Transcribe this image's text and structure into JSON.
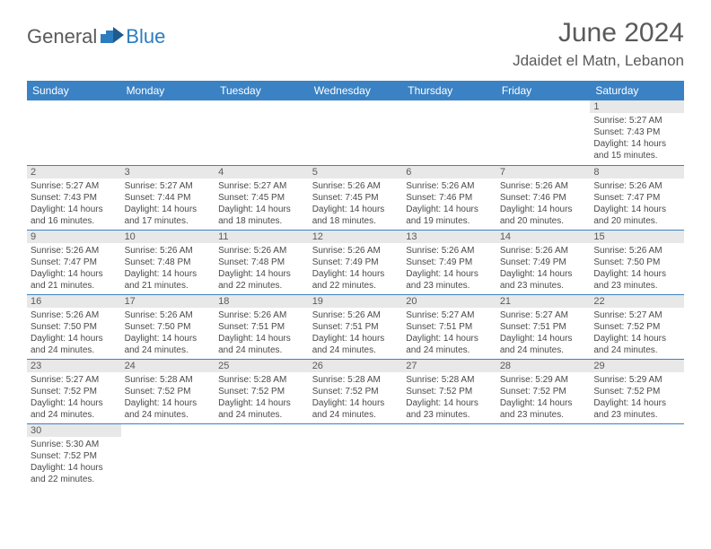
{
  "logo": {
    "part1": "General",
    "part2": "Blue"
  },
  "header": {
    "month": "June 2024",
    "location": "Jdaidet el Matn, Lebanon"
  },
  "colors": {
    "header_bg": "#3b82c4",
    "header_text": "#ffffff",
    "daynum_bg": "#e8e8e8",
    "text": "#5a5a5a",
    "row_border": "#3b82c4"
  },
  "daysOfWeek": [
    "Sunday",
    "Monday",
    "Tuesday",
    "Wednesday",
    "Thursday",
    "Friday",
    "Saturday"
  ],
  "weeks": [
    [
      null,
      null,
      null,
      null,
      null,
      null,
      {
        "n": "1",
        "sr": "Sunrise: 5:27 AM",
        "ss": "Sunset: 7:43 PM",
        "dl": "Daylight: 14 hours and 15 minutes."
      }
    ],
    [
      {
        "n": "2",
        "sr": "Sunrise: 5:27 AM",
        "ss": "Sunset: 7:43 PM",
        "dl": "Daylight: 14 hours and 16 minutes."
      },
      {
        "n": "3",
        "sr": "Sunrise: 5:27 AM",
        "ss": "Sunset: 7:44 PM",
        "dl": "Daylight: 14 hours and 17 minutes."
      },
      {
        "n": "4",
        "sr": "Sunrise: 5:27 AM",
        "ss": "Sunset: 7:45 PM",
        "dl": "Daylight: 14 hours and 18 minutes."
      },
      {
        "n": "5",
        "sr": "Sunrise: 5:26 AM",
        "ss": "Sunset: 7:45 PM",
        "dl": "Daylight: 14 hours and 18 minutes."
      },
      {
        "n": "6",
        "sr": "Sunrise: 5:26 AM",
        "ss": "Sunset: 7:46 PM",
        "dl": "Daylight: 14 hours and 19 minutes."
      },
      {
        "n": "7",
        "sr": "Sunrise: 5:26 AM",
        "ss": "Sunset: 7:46 PM",
        "dl": "Daylight: 14 hours and 20 minutes."
      },
      {
        "n": "8",
        "sr": "Sunrise: 5:26 AM",
        "ss": "Sunset: 7:47 PM",
        "dl": "Daylight: 14 hours and 20 minutes."
      }
    ],
    [
      {
        "n": "9",
        "sr": "Sunrise: 5:26 AM",
        "ss": "Sunset: 7:47 PM",
        "dl": "Daylight: 14 hours and 21 minutes."
      },
      {
        "n": "10",
        "sr": "Sunrise: 5:26 AM",
        "ss": "Sunset: 7:48 PM",
        "dl": "Daylight: 14 hours and 21 minutes."
      },
      {
        "n": "11",
        "sr": "Sunrise: 5:26 AM",
        "ss": "Sunset: 7:48 PM",
        "dl": "Daylight: 14 hours and 22 minutes."
      },
      {
        "n": "12",
        "sr": "Sunrise: 5:26 AM",
        "ss": "Sunset: 7:49 PM",
        "dl": "Daylight: 14 hours and 22 minutes."
      },
      {
        "n": "13",
        "sr": "Sunrise: 5:26 AM",
        "ss": "Sunset: 7:49 PM",
        "dl": "Daylight: 14 hours and 23 minutes."
      },
      {
        "n": "14",
        "sr": "Sunrise: 5:26 AM",
        "ss": "Sunset: 7:49 PM",
        "dl": "Daylight: 14 hours and 23 minutes."
      },
      {
        "n": "15",
        "sr": "Sunrise: 5:26 AM",
        "ss": "Sunset: 7:50 PM",
        "dl": "Daylight: 14 hours and 23 minutes."
      }
    ],
    [
      {
        "n": "16",
        "sr": "Sunrise: 5:26 AM",
        "ss": "Sunset: 7:50 PM",
        "dl": "Daylight: 14 hours and 24 minutes."
      },
      {
        "n": "17",
        "sr": "Sunrise: 5:26 AM",
        "ss": "Sunset: 7:50 PM",
        "dl": "Daylight: 14 hours and 24 minutes."
      },
      {
        "n": "18",
        "sr": "Sunrise: 5:26 AM",
        "ss": "Sunset: 7:51 PM",
        "dl": "Daylight: 14 hours and 24 minutes."
      },
      {
        "n": "19",
        "sr": "Sunrise: 5:26 AM",
        "ss": "Sunset: 7:51 PM",
        "dl": "Daylight: 14 hours and 24 minutes."
      },
      {
        "n": "20",
        "sr": "Sunrise: 5:27 AM",
        "ss": "Sunset: 7:51 PM",
        "dl": "Daylight: 14 hours and 24 minutes."
      },
      {
        "n": "21",
        "sr": "Sunrise: 5:27 AM",
        "ss": "Sunset: 7:51 PM",
        "dl": "Daylight: 14 hours and 24 minutes."
      },
      {
        "n": "22",
        "sr": "Sunrise: 5:27 AM",
        "ss": "Sunset: 7:52 PM",
        "dl": "Daylight: 14 hours and 24 minutes."
      }
    ],
    [
      {
        "n": "23",
        "sr": "Sunrise: 5:27 AM",
        "ss": "Sunset: 7:52 PM",
        "dl": "Daylight: 14 hours and 24 minutes."
      },
      {
        "n": "24",
        "sr": "Sunrise: 5:28 AM",
        "ss": "Sunset: 7:52 PM",
        "dl": "Daylight: 14 hours and 24 minutes."
      },
      {
        "n": "25",
        "sr": "Sunrise: 5:28 AM",
        "ss": "Sunset: 7:52 PM",
        "dl": "Daylight: 14 hours and 24 minutes."
      },
      {
        "n": "26",
        "sr": "Sunrise: 5:28 AM",
        "ss": "Sunset: 7:52 PM",
        "dl": "Daylight: 14 hours and 24 minutes."
      },
      {
        "n": "27",
        "sr": "Sunrise: 5:28 AM",
        "ss": "Sunset: 7:52 PM",
        "dl": "Daylight: 14 hours and 23 minutes."
      },
      {
        "n": "28",
        "sr": "Sunrise: 5:29 AM",
        "ss": "Sunset: 7:52 PM",
        "dl": "Daylight: 14 hours and 23 minutes."
      },
      {
        "n": "29",
        "sr": "Sunrise: 5:29 AM",
        "ss": "Sunset: 7:52 PM",
        "dl": "Daylight: 14 hours and 23 minutes."
      }
    ],
    [
      {
        "n": "30",
        "sr": "Sunrise: 5:30 AM",
        "ss": "Sunset: 7:52 PM",
        "dl": "Daylight: 14 hours and 22 minutes."
      },
      null,
      null,
      null,
      null,
      null,
      null
    ]
  ]
}
